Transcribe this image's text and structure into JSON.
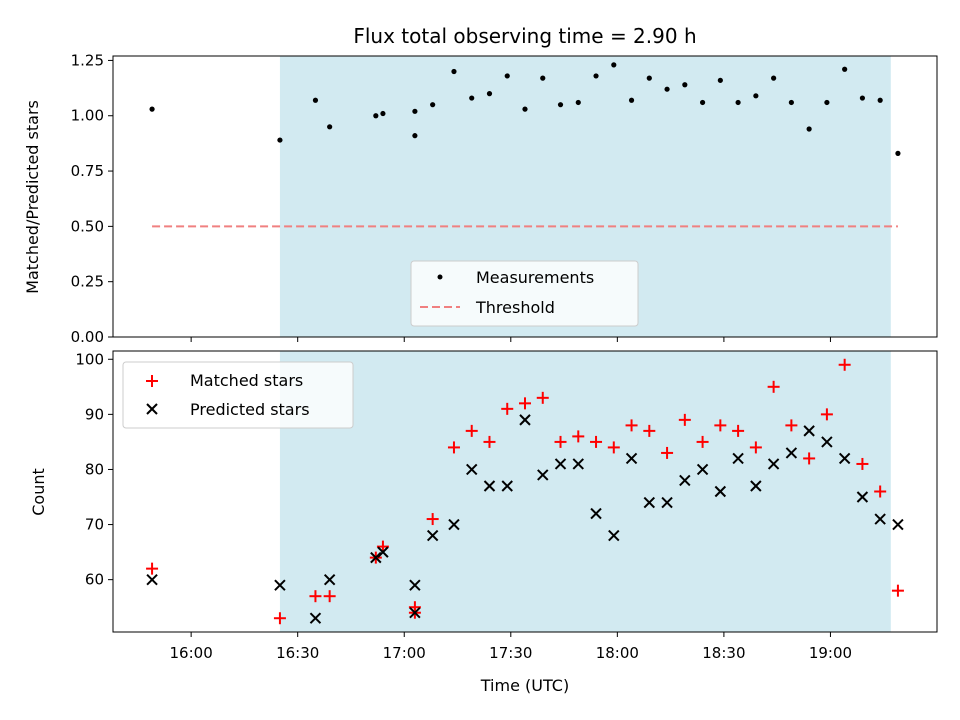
{
  "chart_data": [
    {
      "type": "scatter",
      "title": "Flux total observing time = 2.90 h",
      "xlabel": "",
      "ylabel": "Matched/Predicted stars",
      "ylim": [
        0,
        1.27
      ],
      "yticks": [
        "0.00",
        "0.25",
        "0.50",
        "0.75",
        "1.00",
        "1.25"
      ],
      "shaded_span": [
        "16:25",
        "19:17"
      ],
      "colors": {
        "measurements": "#000000",
        "threshold": "#f08080",
        "shade": "#add8e6"
      },
      "legend_placement": "lower center",
      "series": [
        {
          "name": "Measurements",
          "marker": "dot",
          "x": [
            "15:49",
            "16:25",
            "16:35",
            "16:39",
            "16:52",
            "16:54",
            "17:03",
            "17:03",
            "17:08",
            "17:14",
            "17:19",
            "17:24",
            "17:29",
            "17:34",
            "17:39",
            "17:44",
            "17:49",
            "17:54",
            "17:59",
            "18:04",
            "18:09",
            "18:14",
            "18:19",
            "18:24",
            "18:29",
            "18:34",
            "18:39",
            "18:44",
            "18:49",
            "18:54",
            "18:59",
            "19:04",
            "19:09",
            "19:14",
            "19:19"
          ],
          "y": [
            1.03,
            0.89,
            1.07,
            0.95,
            1.0,
            1.01,
            1.02,
            0.91,
            1.05,
            1.2,
            1.08,
            1.1,
            1.18,
            1.03,
            1.17,
            1.05,
            1.06,
            1.18,
            1.23,
            1.07,
            1.17,
            1.12,
            1.14,
            1.06,
            1.16,
            1.06,
            1.09,
            1.17,
            1.06,
            0.94,
            1.06,
            1.21,
            1.08,
            1.07,
            0.83
          ]
        },
        {
          "name": "Threshold",
          "style": "dashed",
          "x": [
            "15:49",
            "19:19"
          ],
          "y": [
            0.5,
            0.5
          ]
        }
      ]
    },
    {
      "type": "scatter",
      "title": "",
      "xlabel": "Time (UTC)",
      "ylabel": "Count",
      "ylim": [
        50.5,
        101.5
      ],
      "yticks": [
        "60",
        "70",
        "80",
        "90",
        "100"
      ],
      "xticks": [
        "16:00",
        "16:30",
        "17:00",
        "17:30",
        "18:00",
        "18:30",
        "19:00"
      ],
      "shaded_span": [
        "16:25",
        "19:17"
      ],
      "colors": {
        "matched": "#ff0000",
        "predicted": "#000000",
        "shade": "#add8e6"
      },
      "legend_placement": "upper left",
      "series": [
        {
          "name": "Matched stars",
          "marker": "plus",
          "x": [
            "15:49",
            "16:25",
            "16:35",
            "16:39",
            "16:52",
            "16:54",
            "17:03",
            "17:03",
            "17:08",
            "17:14",
            "17:19",
            "17:24",
            "17:29",
            "17:34",
            "17:39",
            "17:44",
            "17:49",
            "17:54",
            "17:59",
            "18:04",
            "18:09",
            "18:14",
            "18:19",
            "18:24",
            "18:29",
            "18:34",
            "18:39",
            "18:44",
            "18:49",
            "18:54",
            "18:59",
            "19:04",
            "19:09",
            "19:14",
            "19:19"
          ],
          "y": [
            62,
            53,
            57,
            57,
            64,
            66,
            55,
            54,
            71,
            84,
            87,
            85,
            91,
            92,
            93,
            85,
            86,
            85,
            84,
            88,
            87,
            83,
            89,
            85,
            88,
            87,
            84,
            95,
            88,
            82,
            90,
            99,
            81,
            76,
            58
          ]
        },
        {
          "name": "Predicted stars",
          "marker": "x",
          "x": [
            "15:49",
            "16:25",
            "16:35",
            "16:39",
            "16:52",
            "16:54",
            "17:03",
            "17:03",
            "17:08",
            "17:14",
            "17:19",
            "17:24",
            "17:29",
            "17:34",
            "17:39",
            "17:44",
            "17:49",
            "17:54",
            "17:59",
            "18:04",
            "18:09",
            "18:14",
            "18:19",
            "18:24",
            "18:29",
            "18:34",
            "18:39",
            "18:44",
            "18:49",
            "18:54",
            "18:59",
            "19:04",
            "19:09",
            "19:14",
            "19:19"
          ],
          "y": [
            60,
            59,
            53,
            60,
            64,
            65,
            54,
            59,
            68,
            70,
            80,
            77,
            77,
            89,
            79,
            81,
            81,
            72,
            68,
            82,
            74,
            74,
            78,
            80,
            76,
            82,
            77,
            81,
            83,
            87,
            85,
            82,
            75,
            71,
            70
          ]
        }
      ]
    }
  ]
}
